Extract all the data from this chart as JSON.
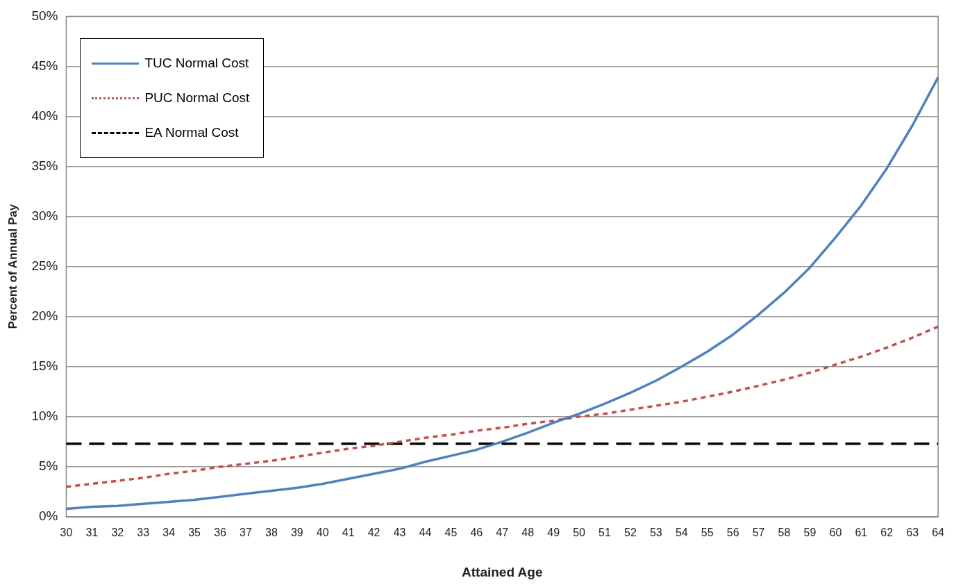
{
  "chart_data": {
    "type": "line",
    "xlabel": "Attained Age",
    "ylabel": "Percent of Annual Pay",
    "categories": [
      "30",
      "31",
      "32",
      "33",
      "34",
      "35",
      "36",
      "37",
      "38",
      "39",
      "40",
      "41",
      "42",
      "43",
      "44",
      "45",
      "46",
      "47",
      "48",
      "49",
      "50",
      "51",
      "52",
      "53",
      "54",
      "55",
      "56",
      "57",
      "58",
      "59",
      "60",
      "61",
      "62",
      "63",
      "64"
    ],
    "series": [
      {
        "name": "TUC Normal Cost",
        "color": "#4f81bd",
        "line_style": "solid",
        "values": [
          0.8,
          1.0,
          1.1,
          1.3,
          1.5,
          1.7,
          2.0,
          2.3,
          2.6,
          2.9,
          3.3,
          3.8,
          4.3,
          4.8,
          5.5,
          6.1,
          6.7,
          7.5,
          8.4,
          9.4,
          10.3,
          11.3,
          12.4,
          13.6,
          15.0,
          16.5,
          18.2,
          20.2,
          22.4,
          24.9,
          27.9,
          31.1,
          34.8,
          39.1,
          43.9
        ]
      },
      {
        "name": "PUC Normal Cost",
        "color": "#c0504d",
        "line_style": "dotted",
        "values": [
          3.0,
          3.3,
          3.6,
          3.9,
          4.3,
          4.6,
          5.0,
          5.3,
          5.6,
          6.0,
          6.4,
          6.8,
          7.1,
          7.5,
          7.9,
          8.2,
          8.6,
          8.9,
          9.3,
          9.6,
          10.0,
          10.3,
          10.7,
          11.1,
          11.5,
          12.0,
          12.5,
          13.1,
          13.7,
          14.4,
          15.2,
          16.0,
          16.9,
          17.9,
          19.0
        ]
      },
      {
        "name": "EA Normal Cost",
        "color": "#000000",
        "line_style": "dashed",
        "values": [
          7.3,
          7.3,
          7.3,
          7.3,
          7.3,
          7.3,
          7.3,
          7.3,
          7.3,
          7.3,
          7.3,
          7.3,
          7.3,
          7.3,
          7.3,
          7.3,
          7.3,
          7.3,
          7.3,
          7.3,
          7.3,
          7.3,
          7.3,
          7.3,
          7.3,
          7.3,
          7.3,
          7.3,
          7.3,
          7.3,
          7.3,
          7.3,
          7.3,
          7.3,
          7.3
        ]
      }
    ],
    "ylim": [
      0,
      50
    ],
    "yticks": [
      {
        "value": 0,
        "label": "0%"
      },
      {
        "value": 5,
        "label": "5%"
      },
      {
        "value": 10,
        "label": "10%"
      },
      {
        "value": 15,
        "label": "15%"
      },
      {
        "value": 20,
        "label": "20%"
      },
      {
        "value": 25,
        "label": "25%"
      },
      {
        "value": 30,
        "label": "30%"
      },
      {
        "value": 35,
        "label": "35%"
      },
      {
        "value": 40,
        "label": "40%"
      },
      {
        "value": 45,
        "label": "45%"
      },
      {
        "value": 50,
        "label": "50%"
      }
    ],
    "grid": "y",
    "legend": "top left",
    "marker": "none"
  }
}
